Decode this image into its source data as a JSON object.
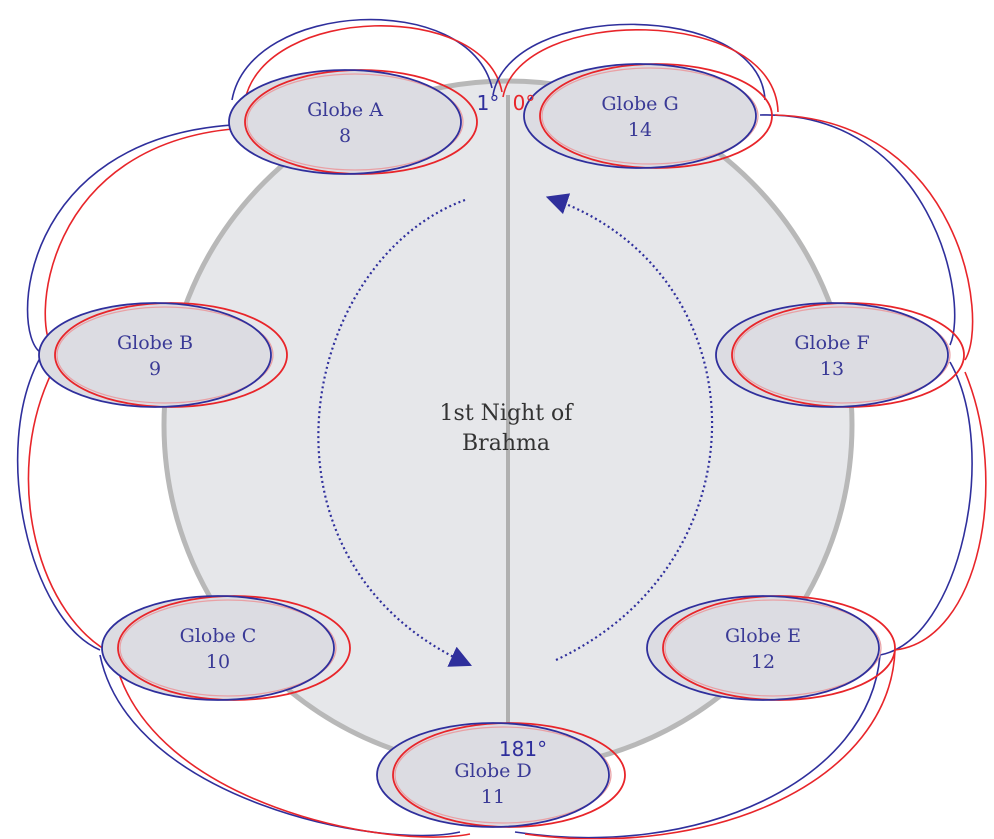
{
  "globes": [
    {
      "name": "Globe A",
      "number": 8
    },
    {
      "name": "Globe B",
      "number": 9
    },
    {
      "name": "Globe C",
      "number": 10
    },
    {
      "name": "Globe D",
      "number": 11
    },
    {
      "name": "Globe E",
      "number": 12
    },
    {
      "name": "Globe F",
      "number": 13
    },
    {
      "name": "Globe G",
      "number": 14
    }
  ],
  "degrees": {
    "left": "1°",
    "right": "0°",
    "bottom": "181°"
  },
  "center": {
    "line1": "1st Night of",
    "line2": "Brahma"
  }
}
